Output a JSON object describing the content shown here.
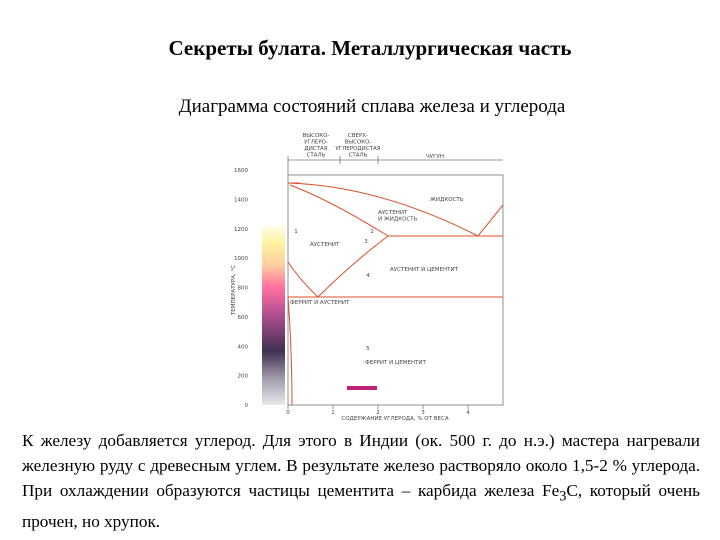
{
  "header": {
    "title": "Секреты булата. Металлургическая часть",
    "subtitle": "Диаграмма состояний сплава железа и углерода"
  },
  "diagram": {
    "y_axis_label": "ТЕМПЕРАТУРА, °С",
    "x_axis_label": "СОДЕРЖАНИЕ УГЛЕРОДА, % ОТ ВЕСА",
    "yticks": [
      0,
      200,
      400,
      600,
      800,
      1000,
      1200,
      1400,
      1600
    ],
    "xticks": [
      0,
      1,
      2,
      3,
      4
    ],
    "top_labels": [
      [
        "ВЫСОКО-",
        "УГЛЕРО-",
        "ДИСТАЯ",
        "СТАЛЬ"
      ],
      [
        "СВЕРХ-",
        "ВЫСОКО-",
        "УГЛЕРОДИСТАЯ",
        "СТАЛЬ"
      ],
      [
        "ЧУГУН"
      ]
    ],
    "region_labels": [
      [
        "ЖИДКОСТЬ"
      ],
      [
        "АУСТЕНИТ",
        "И ЖИДКОСТЬ"
      ],
      [
        "АУСТЕНИТ"
      ],
      [
        "АУСТЕНИТ И ЦЕМЕНТИТ"
      ],
      [
        "ФЕРРИТ И АУСТЕНИТ"
      ],
      [
        "ФЕРРИТ И ЦЕМЕНТИТ"
      ]
    ],
    "point_labels": [
      "1",
      "2",
      "3",
      "4",
      "5"
    ]
  },
  "paragraph": {
    "text": "К железу добавляется углерод. Для этого в Индии (ок. 500 г. до н.э.) мастера нагревали железную руду с древесным углем. В результате железо растворяло около 1,5-2 % углерода. При охлаждении образуются частицы цементита – карбида железа Fe",
    "subscript": "3",
    "rest": "C, который очень прочен, но хрупок."
  }
}
